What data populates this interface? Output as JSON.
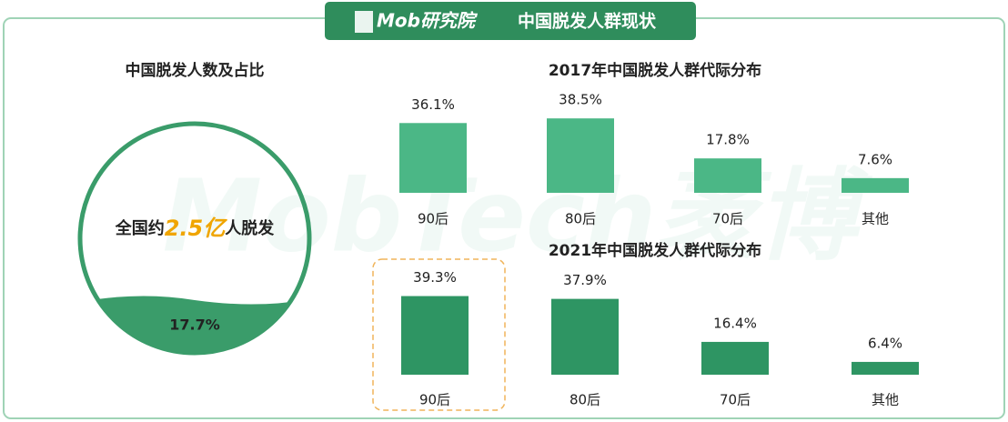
{
  "header": {
    "logo": "Mob研究院",
    "title": "中国脱发人群现状"
  },
  "summary": {
    "title": "中国脱发人数及占比",
    "prefix": "全国约",
    "highlight": "2.5亿",
    "suffix": "人脱发",
    "share": "17.7%"
  },
  "watermark": "MobTech袤博",
  "chart_data": [
    {
      "type": "bar",
      "title": "2017年中国脱发人群代际分布",
      "categories": [
        "90后",
        "80后",
        "70后",
        "其他"
      ],
      "values": [
        36.1,
        38.5,
        17.8,
        7.6
      ],
      "value_labels": [
        "36.1%",
        "38.5%",
        "17.8%",
        "7.6%"
      ],
      "color": "#4bb786",
      "ylim": [
        0,
        40
      ]
    },
    {
      "type": "bar",
      "title": "2021年中国脱发人群代际分布",
      "categories": [
        "90后",
        "80后",
        "70后",
        "其他"
      ],
      "values": [
        39.3,
        37.9,
        16.4,
        6.4
      ],
      "value_labels": [
        "39.3%",
        "37.9%",
        "16.4%",
        "6.4%"
      ],
      "color": "#2e9563",
      "ylim": [
        0,
        40
      ]
    }
  ]
}
